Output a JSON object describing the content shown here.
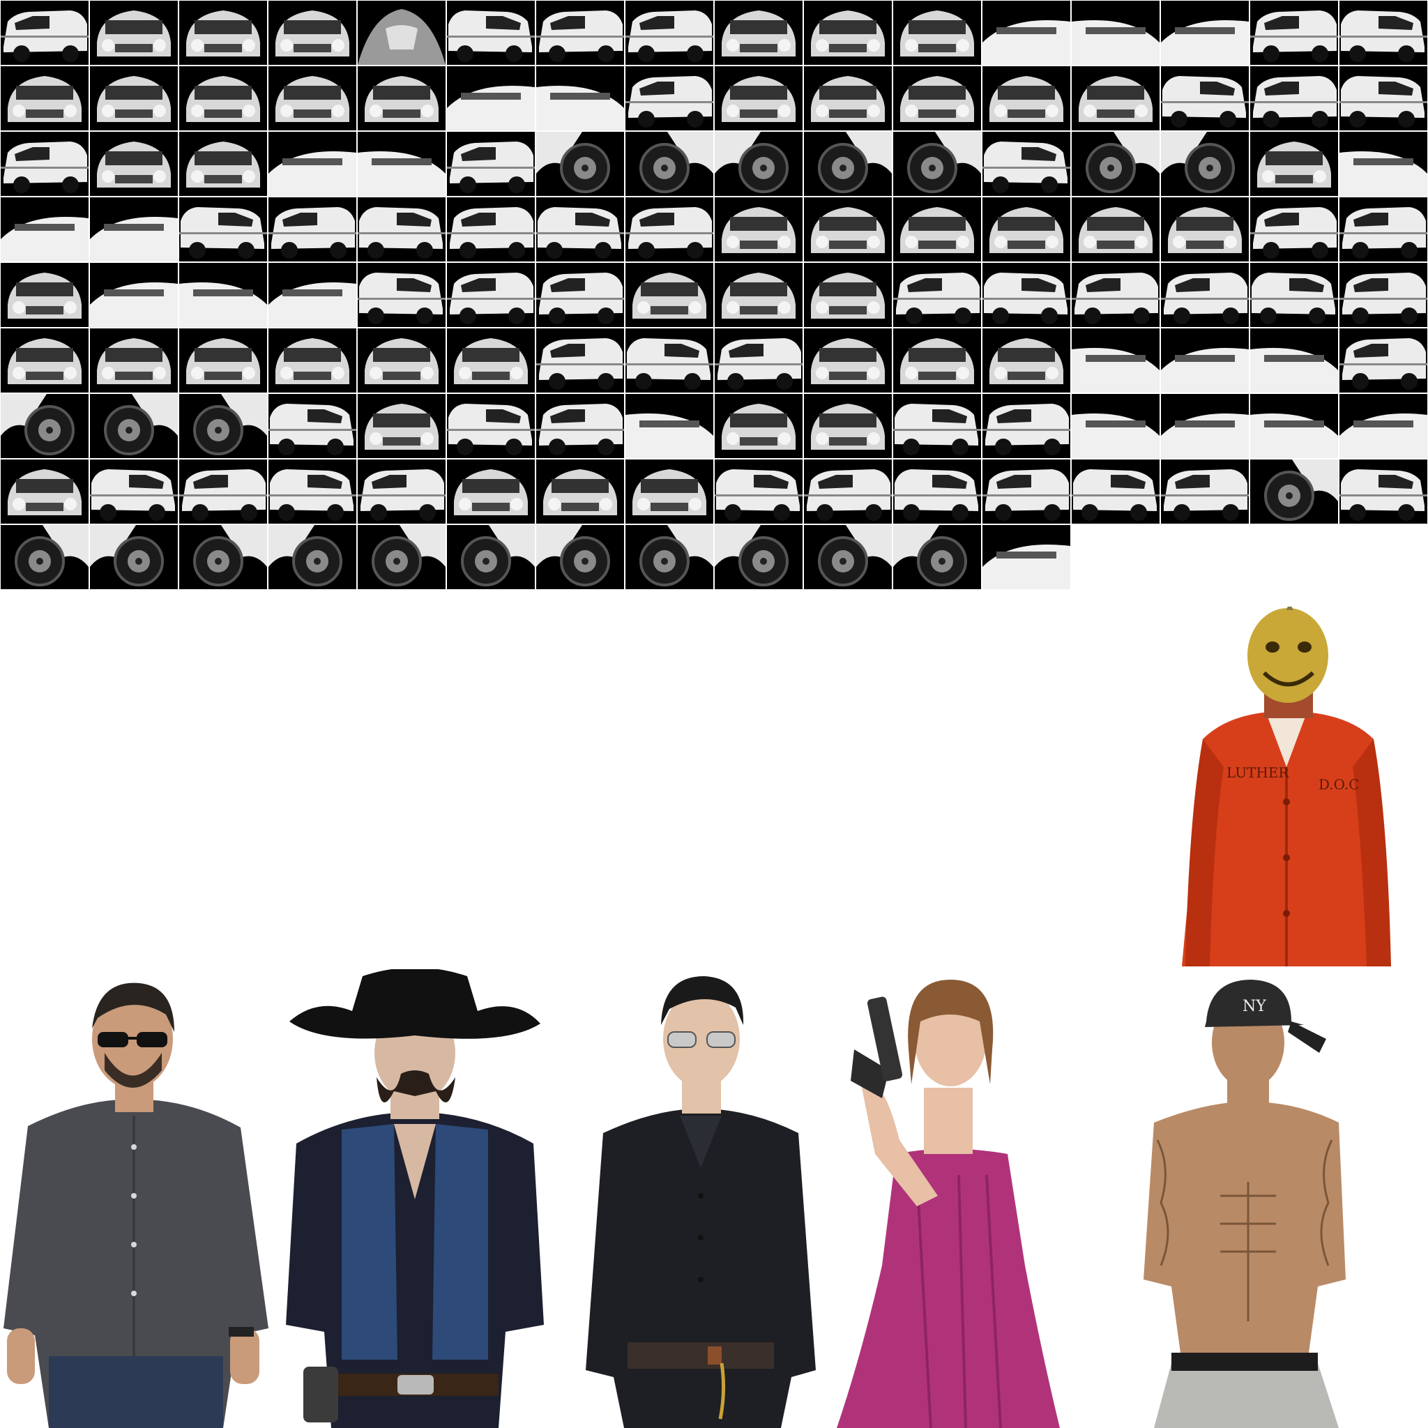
{
  "atlas": {
    "background": "#000000",
    "grid_line_color": "#ffffff",
    "columns": 16,
    "rows": [
      16,
      16,
      16,
      16,
      16,
      16,
      16,
      16,
      12
    ],
    "tile_kinds": [
      [
        "side",
        "front",
        "front",
        "front",
        "hood",
        "side",
        "side",
        "side",
        "front",
        "front",
        "front",
        "roof",
        "roof",
        "roof",
        "side",
        "side"
      ],
      [
        "front",
        "front",
        "front",
        "front",
        "front",
        "roof",
        "roof",
        "side",
        "front",
        "front",
        "front",
        "front",
        "front",
        "side",
        "side",
        "side"
      ],
      [
        "side",
        "front",
        "front",
        "roof",
        "roof",
        "side",
        "wheel",
        "wheel",
        "wheel",
        "wheel",
        "wheel",
        "side",
        "wheel",
        "wheel",
        "front",
        "roof"
      ],
      [
        "roof",
        "roof",
        "side",
        "side",
        "side",
        "side",
        "side",
        "side",
        "front",
        "front",
        "front",
        "front",
        "front",
        "front",
        "side",
        "side"
      ],
      [
        "front",
        "roof",
        "roof",
        "roof",
        "side",
        "side",
        "side",
        "front",
        "front",
        "front",
        "side",
        "side",
        "side",
        "side",
        "side",
        "side"
      ],
      [
        "front",
        "front",
        "front",
        "front",
        "front",
        "front",
        "side",
        "side",
        "side",
        "front",
        "front",
        "front",
        "roof",
        "roof",
        "roof",
        "side"
      ],
      [
        "wheel",
        "wheel",
        "wheel",
        "side",
        "front",
        "side",
        "side",
        "roof",
        "front",
        "front",
        "side",
        "side",
        "roof",
        "roof",
        "roof",
        "roof"
      ],
      [
        "front",
        "side",
        "side",
        "side",
        "side",
        "front",
        "front",
        "front",
        "side",
        "side",
        "side",
        "side",
        "side",
        "side",
        "wheel",
        "side"
      ],
      [
        "wheel",
        "wheel",
        "wheel",
        "wheel",
        "wheel",
        "wheel",
        "wheel",
        "wheel",
        "wheel",
        "wheel",
        "wheel",
        "roof"
      ]
    ]
  },
  "characters": [
    {
      "id": "man-grey-shirt",
      "shirt": "#4a4b50",
      "pants": "#2c3a55",
      "skin": "#c99b7a",
      "hair": "#2a2420",
      "accessory": "sunglasses"
    },
    {
      "id": "cowboy",
      "shirt": "#1c2030",
      "vest": "#2d4a78",
      "pants": "#141414",
      "skin": "#d7b9a3",
      "hair": "#2a1f18",
      "accessory": "hat"
    },
    {
      "id": "man-black-suit",
      "shirt": "#1d1f24",
      "pants": "#22252c",
      "skin": "#e2c2a8",
      "hair": "#1a1a1a",
      "accessory": "sunglasses"
    },
    {
      "id": "woman-pink-dress",
      "dress": "#b0337a",
      "skin": "#e7c0a6",
      "hair": "#8a5a34",
      "accessory": "pistol"
    },
    {
      "id": "shirtless-tattooed",
      "pants": "#b9b9b5",
      "skin": "#b98a66",
      "hair": "#2b2b2b",
      "accessory": "cap",
      "cap_text": "NY"
    },
    {
      "id": "prisoner-mask",
      "jumpsuit": "#d73f1b",
      "mask": "#c9a838",
      "skin": "#a34b2c",
      "text_name": "LUTHER",
      "text_org": "D.O.C"
    }
  ]
}
